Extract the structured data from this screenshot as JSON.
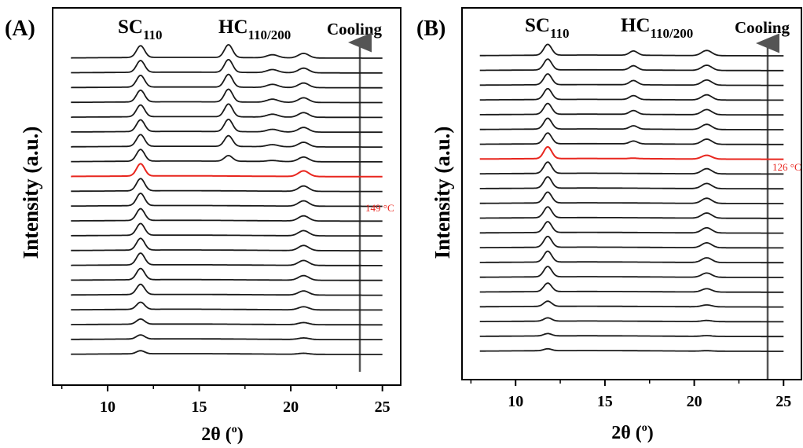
{
  "chart_data": [
    {
      "type": "line",
      "panel_label": "(A)",
      "xlabel": "2θ (",
      "xlabel_unit": "o",
      "xlabel_close": ")",
      "ylabel": "Intensity (a.u.)",
      "xlim": [
        7,
        26
      ],
      "xticks": [
        "10",
        "15",
        "20",
        "25"
      ],
      "xtick_values": [
        10,
        15,
        20,
        25
      ],
      "x_range": [
        8,
        25
      ],
      "annotations": {
        "sc_main": "SC",
        "sc_sub": "110",
        "hc_main": "HC",
        "hc_sub": "110/200",
        "arrow_label": "Cooling",
        "temperature_label": "149 °C"
      },
      "peak_positions": {
        "sc110": 11.8,
        "hc110_200": 16.6,
        "hc_minor": 19.0,
        "sc_second": 20.7
      },
      "highlight_color": "#e8261e",
      "line_color": "#1a1a1a",
      "series": [
        {
          "sc": 0.3,
          "hc": 0.0,
          "hc2": 0.0,
          "sc2": 0.1
        },
        {
          "sc": 0.4,
          "hc": 0.0,
          "hc2": 0.0,
          "sc2": 0.15
        },
        {
          "sc": 0.5,
          "hc": 0.0,
          "hc2": 0.0,
          "sc2": 0.2
        },
        {
          "sc": 0.7,
          "hc": 0.0,
          "hc2": 0.0,
          "sc2": 0.3
        },
        {
          "sc": 1.0,
          "hc": 0.0,
          "hc2": 0.0,
          "sc2": 0.4
        },
        {
          "sc": 1.1,
          "hc": 0.0,
          "hc2": 0.0,
          "sc2": 0.45
        },
        {
          "sc": 1.15,
          "hc": 0.0,
          "hc2": 0.0,
          "sc2": 0.48
        },
        {
          "sc": 1.15,
          "hc": 0.0,
          "hc2": 0.0,
          "sc2": 0.5
        },
        {
          "sc": 1.15,
          "hc": 0.0,
          "hc2": 0.0,
          "sc2": 0.5
        },
        {
          "sc": 1.15,
          "hc": 0.0,
          "hc2": 0.0,
          "sc2": 0.5
        },
        {
          "sc": 1.2,
          "hc": 0.0,
          "hc2": 0.0,
          "sc2": 0.52
        },
        {
          "sc": 1.2,
          "hc": 0.0,
          "hc2": 0.0,
          "sc2": 0.52
        },
        {
          "sc": 1.2,
          "hc": 0.0,
          "hc2": 0.0,
          "sc2": 0.55,
          "highlight": true
        },
        {
          "sc": 1.15,
          "hc": 0.55,
          "hc2": 0.1,
          "sc2": 0.45
        },
        {
          "sc": 1.15,
          "hc": 1.05,
          "hc2": 0.2,
          "sc2": 0.45
        },
        {
          "sc": 1.15,
          "hc": 1.2,
          "hc2": 0.25,
          "sc2": 0.45
        },
        {
          "sc": 1.15,
          "hc": 1.25,
          "hc2": 0.28,
          "sc2": 0.45
        },
        {
          "sc": 1.15,
          "hc": 1.25,
          "hc2": 0.3,
          "sc2": 0.45
        },
        {
          "sc": 1.15,
          "hc": 1.25,
          "hc2": 0.3,
          "sc2": 0.45
        },
        {
          "sc": 1.15,
          "hc": 1.25,
          "hc2": 0.3,
          "sc2": 0.45
        },
        {
          "sc": 1.15,
          "hc": 1.25,
          "hc2": 0.3,
          "sc2": 0.45
        }
      ]
    },
    {
      "type": "line",
      "panel_label": "(B)",
      "xlabel": "2θ (",
      "xlabel_unit": "o",
      "xlabel_close": ")",
      "ylabel": "Intensity (a.u.)",
      "xlim": [
        7,
        26
      ],
      "xticks": [
        "10",
        "15",
        "20",
        "25"
      ],
      "xtick_values": [
        10,
        15,
        20,
        25
      ],
      "x_range": [
        8,
        25
      ],
      "annotations": {
        "sc_main": "SC",
        "sc_sub": "110",
        "hc_main": "HC",
        "hc_sub": "110/200",
        "arrow_label": "Cooling",
        "temperature_label": "126 °C"
      },
      "peak_positions": {
        "sc110": 11.8,
        "hc110_200": 16.6,
        "hc_minor": 19.0,
        "sc_second": 20.7
      },
      "highlight_color": "#e8261e",
      "line_color": "#1a1a1a",
      "series": [
        {
          "sc": 0.2,
          "hc": 0.0,
          "hc2": 0.0,
          "sc2": 0.05
        },
        {
          "sc": 0.25,
          "hc": 0.0,
          "hc2": 0.0,
          "sc2": 0.08
        },
        {
          "sc": 0.35,
          "hc": 0.0,
          "hc2": 0.0,
          "sc2": 0.12
        },
        {
          "sc": 0.55,
          "hc": 0.0,
          "hc2": 0.0,
          "sc2": 0.2
        },
        {
          "sc": 0.9,
          "hc": 0.0,
          "hc2": 0.0,
          "sc2": 0.35
        },
        {
          "sc": 1.1,
          "hc": 0.0,
          "hc2": 0.0,
          "sc2": 0.45
        },
        {
          "sc": 1.15,
          "hc": 0.0,
          "hc2": 0.0,
          "sc2": 0.5
        },
        {
          "sc": 1.15,
          "hc": 0.0,
          "hc2": 0.0,
          "sc2": 0.52
        },
        {
          "sc": 1.15,
          "hc": 0.0,
          "hc2": 0.0,
          "sc2": 0.55
        },
        {
          "sc": 1.15,
          "hc": 0.0,
          "hc2": 0.0,
          "sc2": 0.55
        },
        {
          "sc": 1.15,
          "hc": 0.0,
          "hc2": 0.0,
          "sc2": 0.55
        },
        {
          "sc": 1.2,
          "hc": 0.0,
          "hc2": 0.0,
          "sc2": 0.55
        },
        {
          "sc": 1.2,
          "hc": 0.0,
          "hc2": 0.0,
          "sc2": 0.55
        },
        {
          "sc": 1.25,
          "hc": 0.05,
          "hc2": 0.0,
          "sc2": 0.4,
          "highlight": true
        },
        {
          "sc": 1.15,
          "hc": 0.3,
          "hc2": 0.0,
          "sc2": 0.55
        },
        {
          "sc": 1.15,
          "hc": 0.35,
          "hc2": 0.0,
          "sc2": 0.55
        },
        {
          "sc": 1.15,
          "hc": 0.4,
          "hc2": 0.0,
          "sc2": 0.55
        },
        {
          "sc": 1.15,
          "hc": 0.42,
          "hc2": 0.0,
          "sc2": 0.55
        },
        {
          "sc": 1.15,
          "hc": 0.45,
          "hc2": 0.0,
          "sc2": 0.55
        },
        {
          "sc": 1.15,
          "hc": 0.45,
          "hc2": 0.0,
          "sc2": 0.55
        },
        {
          "sc": 1.15,
          "hc": 0.45,
          "hc2": 0.0,
          "sc2": 0.55
        }
      ]
    }
  ]
}
